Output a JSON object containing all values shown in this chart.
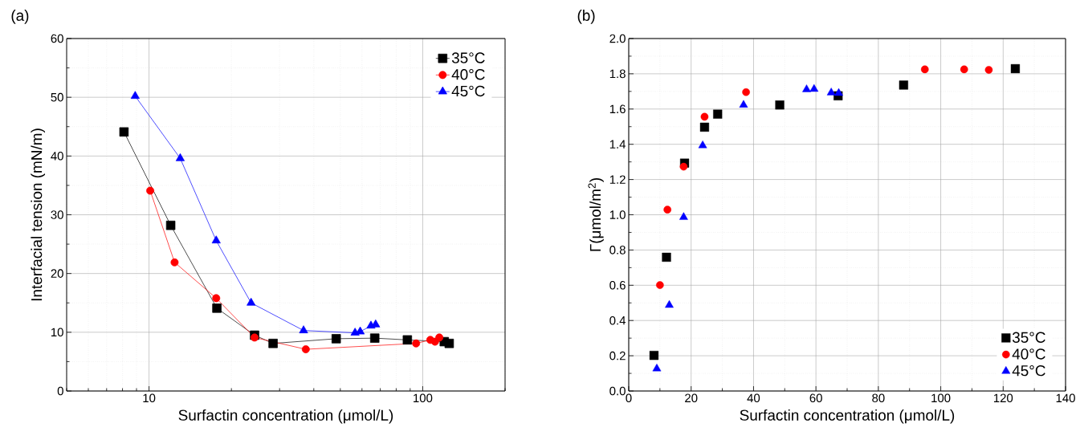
{
  "chart_data": [
    {
      "type": "line",
      "title": "(a)",
      "xlabel": "Surfactin concentration (μmol/L)",
      "ylabel": "Interfacial tension (mN/m)",
      "log": "x",
      "xlim": [
        5,
        200
      ],
      "xticks": [
        10,
        100
      ],
      "ylim": [
        0,
        60
      ],
      "yticks": [
        0,
        10,
        20,
        30,
        40,
        50,
        60
      ],
      "grid": true,
      "legend": "top right",
      "line_style": "solid",
      "series": [
        {
          "name": "35°C",
          "color": "#000000",
          "marker": "square",
          "x": [
            8.1,
            12.0,
            17.7,
            24.3,
            28.4,
            48.3,
            66.8,
            87.9,
            119.9,
            125
          ],
          "values": [
            44.1,
            28.2,
            14.1,
            9.5,
            8.1,
            8.9,
            9.0,
            8.7,
            8.4,
            8.1
          ]
        },
        {
          "name": "40°C",
          "color": "#ff0000",
          "marker": "circle",
          "x": [
            10.1,
            12.4,
            17.6,
            24.3,
            37.4,
            94.6,
            106.6,
            110.9,
            115.0
          ],
          "values": [
            34.1,
            21.9,
            15.8,
            9.1,
            7.1,
            8.1,
            8.7,
            8.4,
            9.1
          ]
        },
        {
          "name": "45°C",
          "color": "#0000ff",
          "marker": "triangle",
          "x": [
            8.9,
            13.0,
            17.6,
            23.6,
            36.7,
            56.6,
            59.1,
            64.7,
            67.3
          ],
          "values": [
            50.2,
            39.6,
            25.6,
            15.0,
            10.3,
            9.9,
            10.1,
            11.1,
            11.3
          ]
        }
      ]
    },
    {
      "type": "scatter",
      "title": "(b)",
      "xlabel": "Surfactin concentration (μmol/L)",
      "ylabel": "Γ(μmol/m$^{2}$)",
      "xlim": [
        0,
        140
      ],
      "xticks": [
        0,
        20,
        40,
        60,
        80,
        100,
        120,
        140
      ],
      "ylim": [
        0,
        2.0
      ],
      "yticks": [
        {
          "value": 0,
          "label": "0.0"
        },
        0.2,
        0.4,
        0.6,
        0.8,
        {
          "value": 1,
          "label": "1.0"
        },
        1.2,
        1.4,
        1.6,
        1.8,
        {
          "value": 2,
          "label": "2.0"
        }
      ],
      "grid": true,
      "legend": "bottom right",
      "series": [
        {
          "name": "35°C",
          "color": "#000000",
          "marker": "square",
          "x": [
            8.1,
            12.1,
            17.9,
            24.3,
            28.5,
            48.4,
            67.1,
            88.1,
            123.9
          ],
          "values": [
            0.202,
            0.759,
            1.293,
            1.497,
            1.571,
            1.623,
            1.675,
            1.736,
            1.829
          ]
        },
        {
          "name": "40°C",
          "color": "#ff0000",
          "marker": "circle",
          "x": [
            10.0,
            12.4,
            17.6,
            24.3,
            37.6,
            94.9,
            107.5,
            115.4
          ],
          "values": [
            0.601,
            1.029,
            1.273,
            1.556,
            1.696,
            1.825,
            1.825,
            1.822
          ]
        },
        {
          "name": "45°C",
          "color": "#0000ff",
          "marker": "triangle",
          "x": [
            9.0,
            13.0,
            17.6,
            23.7,
            36.8,
            57.0,
            59.4,
            64.9,
            67.3
          ],
          "values": [
            0.127,
            0.487,
            0.986,
            1.393,
            1.623,
            1.711,
            1.713,
            1.693,
            1.69
          ]
        }
      ]
    }
  ]
}
